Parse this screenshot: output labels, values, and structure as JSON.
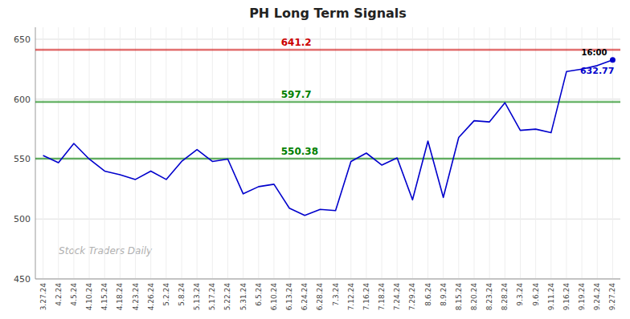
{
  "chart_data": {
    "type": "line",
    "title": "PH Long Term Signals",
    "categories": [
      "3.27.24",
      "4.2.24",
      "4.5.24",
      "4.10.24",
      "4.15.24",
      "4.18.24",
      "4.23.24",
      "4.26.24",
      "5.2.24",
      "5.8.24",
      "5.13.24",
      "5.17.24",
      "5.22.24",
      "5.31.24",
      "6.5.24",
      "6.10.24",
      "6.13.24",
      "6.24.24",
      "6.28.24",
      "7.3.24",
      "7.12.24",
      "7.16.24",
      "7.18.24",
      "7.24.24",
      "7.29.24",
      "8.6.24",
      "8.9.24",
      "8.15.24",
      "8.20.24",
      "8.23.24",
      "8.28.24",
      "9.3.24",
      "9.6.24",
      "9.11.24",
      "9.16.24",
      "9.19.24",
      "9.24.24",
      "9.27.24"
    ],
    "values": [
      553,
      547,
      563,
      550,
      540,
      537,
      533,
      540,
      533,
      548,
      558,
      548,
      550,
      521,
      527,
      529,
      509,
      503,
      508,
      507,
      548,
      555,
      545,
      551,
      516,
      565,
      518,
      568,
      582,
      581,
      597,
      574,
      575,
      572,
      623,
      625,
      628,
      632.77
    ],
    "color": "#0000cc",
    "ylim": [
      450,
      660
    ],
    "yticks": [
      450,
      500,
      550,
      600,
      650
    ],
    "grid": true,
    "hlines": [
      {
        "value": 641.2,
        "label": "641.2",
        "color": "#cc0000"
      },
      {
        "value": 597.7,
        "label": "597.7",
        "color": "#008000"
      },
      {
        "value": 550.38,
        "label": "550.38",
        "color": "#008000"
      }
    ],
    "annotations": [
      {
        "text": "16:00"
      },
      {
        "text": "632.77"
      }
    ],
    "watermark": "Stock Traders Daily"
  }
}
